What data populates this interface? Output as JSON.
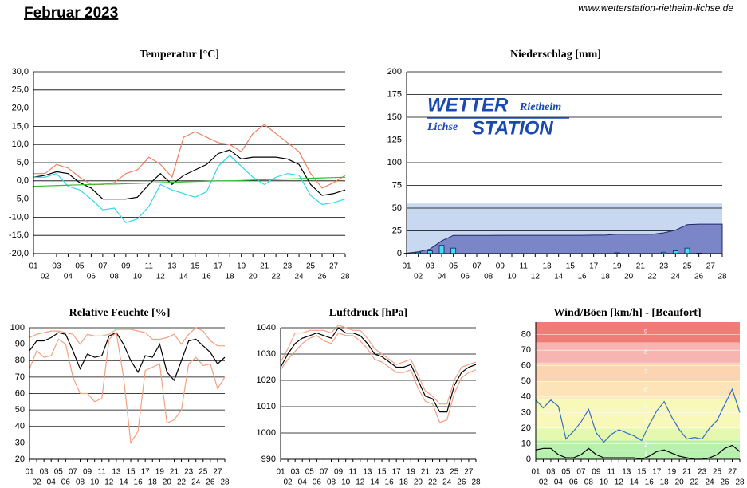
{
  "header": {
    "title": "Februar 2023",
    "url": "www.wetterstation-rietheim-lichse.de"
  },
  "chart_data": [
    {
      "type": "line",
      "title": "Temperatur [°C]",
      "categories": [
        "01",
        "02",
        "03",
        "04",
        "05",
        "06",
        "07",
        "08",
        "09",
        "10",
        "11",
        "12",
        "13",
        "14",
        "15",
        "16",
        "17",
        "18",
        "19",
        "20",
        "21",
        "22",
        "23",
        "24",
        "25",
        "26",
        "27",
        "28"
      ],
      "series": [
        {
          "color": "#f08060",
          "values": [
            2,
            2,
            4.5,
            3.5,
            1,
            -1,
            -1,
            -0.5,
            2,
            3,
            6.5,
            4.5,
            1,
            12,
            13.5,
            12,
            10.5,
            10,
            8,
            13,
            15.5,
            13,
            10.5,
            8,
            2,
            -2,
            -0.5,
            1.5
          ]
        },
        {
          "color": "#000000",
          "values": [
            1,
            1.5,
            2.5,
            2,
            -0.5,
            -2,
            -5,
            -5,
            -5,
            -4.5,
            -1,
            2,
            -1,
            1.5,
            3,
            4.5,
            7.5,
            8.5,
            6,
            6.5,
            6.5,
            6.5,
            6,
            4.5,
            -1,
            -4,
            -3.5,
            -2.5
          ]
        },
        {
          "color": "#30d8f0",
          "values": [
            1,
            1,
            2,
            -1.5,
            -2.5,
            -5,
            -8,
            -7.5,
            -11.5,
            -10.5,
            -7,
            -1,
            -2.5,
            -3.5,
            -4.5,
            -3,
            4,
            7,
            4,
            1,
            -1,
            1,
            2,
            1.5,
            -4,
            -6.5,
            -6,
            -5
          ]
        },
        {
          "color": "#30c030",
          "values": [
            -1.5,
            -1.4,
            -1.3,
            -1.2,
            -1.1,
            -1,
            -0.9,
            -0.9,
            -0.8,
            -0.7,
            -0.6,
            -0.5,
            -0.4,
            -0.3,
            -0.2,
            -0.1,
            0,
            0,
            0.1,
            0.2,
            0.3,
            0.4,
            0.5,
            0.6,
            0.7,
            0.8,
            0.9,
            1
          ]
        }
      ],
      "ylim": [
        -20,
        30
      ],
      "yticks": [
        {
          "value": -20,
          "label": "-20,0"
        },
        {
          "value": -15,
          "label": "-15,0"
        },
        {
          "value": -10,
          "label": "-10,0"
        },
        {
          "value": -5,
          "label": "-5,0"
        },
        {
          "value": 0,
          "label": "0,0"
        },
        {
          "value": 5,
          "label": "5,0"
        },
        {
          "value": 10,
          "label": "10,0"
        },
        {
          "value": 15,
          "label": "15,0"
        },
        {
          "value": 20,
          "label": "20,0"
        },
        {
          "value": 25,
          "label": "25,0"
        },
        {
          "value": 30,
          "label": "30,0"
        }
      ],
      "grid": true
    },
    {
      "type": "bar",
      "title": "Niederschlag [mm]",
      "categories": [
        "01",
        "02",
        "03",
        "04",
        "05",
        "06",
        "07",
        "08",
        "09",
        "10",
        "11",
        "12",
        "13",
        "14",
        "15",
        "16",
        "17",
        "18",
        "19",
        "20",
        "21",
        "22",
        "23",
        "24",
        "25",
        "26",
        "27",
        "28"
      ],
      "values": [
        0.5,
        1.5,
        3,
        9,
        6,
        0,
        0,
        0,
        0.1,
        0,
        0,
        0,
        0,
        0,
        0,
        0,
        0.2,
        0,
        1,
        0,
        0,
        0,
        1.5,
        3,
        6,
        0.5,
        0,
        0
      ],
      "color": "#40e0f0",
      "cumulative_area": true,
      "area_color": "#7a86c8",
      "normal_range": [
        0,
        55
      ],
      "normal_range_color": "#c8d8f0",
      "logo": [
        "WETTER",
        "Rietheim",
        "Lichse",
        "STATION"
      ],
      "ylim": [
        0,
        200
      ],
      "yticks": [
        0,
        25,
        50,
        75,
        100,
        125,
        150,
        175,
        200
      ],
      "grid": true
    },
    {
      "type": "line",
      "title": "Relative Feuchte [%]",
      "categories": [
        "01",
        "02",
        "03",
        "04",
        "05",
        "06",
        "07",
        "08",
        "09",
        "10",
        "11",
        "12",
        "13",
        "14",
        "15",
        "16",
        "17",
        "18",
        "19",
        "20",
        "21",
        "22",
        "23",
        "24",
        "25",
        "26",
        "27",
        "28"
      ],
      "series": [
        {
          "color": "#f4a080",
          "values": [
            94,
            96,
            97,
            98,
            98,
            97,
            96,
            90,
            96,
            95,
            95,
            96,
            99,
            99,
            99,
            98,
            97,
            93,
            93,
            94,
            96,
            90,
            96,
            100,
            98,
            92,
            89,
            89
          ]
        },
        {
          "color": "#000000",
          "values": [
            86,
            92,
            92,
            94,
            97,
            96,
            86,
            75,
            84,
            82,
            83,
            95,
            97,
            90,
            80,
            73,
            83,
            82,
            90,
            73,
            68,
            80,
            92,
            93,
            89,
            85,
            78,
            82
          ]
        },
        {
          "color": "#f4a080",
          "values": [
            75,
            86,
            82,
            83,
            93,
            90,
            70,
            60,
            60,
            55,
            57,
            93,
            97,
            70,
            30,
            37,
            74,
            76,
            78,
            42,
            44,
            50,
            78,
            82,
            77,
            78,
            63,
            70
          ]
        }
      ],
      "ylim": [
        20,
        100
      ],
      "yticks": [
        20,
        30,
        40,
        50,
        60,
        70,
        80,
        90,
        100
      ],
      "grid": true
    },
    {
      "type": "line",
      "title": "Luftdruck [hPa]",
      "categories": [
        "01",
        "02",
        "03",
        "04",
        "05",
        "06",
        "07",
        "08",
        "09",
        "10",
        "11",
        "12",
        "13",
        "14",
        "15",
        "16",
        "17",
        "18",
        "19",
        "20",
        "21",
        "22",
        "23",
        "24",
        "25",
        "26",
        "27",
        "28"
      ],
      "series": [
        {
          "color": "#f4a080",
          "values": [
            1027,
            1032,
            1038,
            1038,
            1039,
            1039,
            1039,
            1038,
            1041,
            1040,
            1039,
            1039,
            1036,
            1032,
            1030,
            1028,
            1026,
            1027,
            1028,
            1022,
            1016,
            1014,
            1011,
            1011,
            1020,
            1025,
            1026,
            1027
          ]
        },
        {
          "color": "#000000",
          "values": [
            1025,
            1030,
            1034,
            1036,
            1037,
            1038,
            1037,
            1036,
            1040,
            1038,
            1038,
            1037,
            1034,
            1030,
            1029,
            1027,
            1025,
            1025,
            1026,
            1020,
            1014,
            1013,
            1008,
            1008,
            1018,
            1023,
            1025,
            1026
          ]
        },
        {
          "color": "#f4a080",
          "values": [
            1024,
            1028,
            1031,
            1034,
            1036,
            1037,
            1035,
            1034,
            1038,
            1037,
            1037,
            1035,
            1032,
            1028,
            1027,
            1025,
            1023,
            1023,
            1024,
            1017,
            1012,
            1011,
            1004,
            1005,
            1015,
            1021,
            1023,
            1024
          ]
        }
      ],
      "ylim": [
        990,
        1040
      ],
      "yticks": [
        990,
        1000,
        1010,
        1020,
        1030,
        1040
      ],
      "grid": true
    },
    {
      "type": "line",
      "title": "Wind/Böen [km/h] - [Beaufort]",
      "categories": [
        "01",
        "02",
        "03",
        "04",
        "05",
        "06",
        "07",
        "08",
        "09",
        "10",
        "11",
        "12",
        "13",
        "14",
        "15",
        "16",
        "17",
        "18",
        "19",
        "20",
        "21",
        "22",
        "23",
        "24",
        "25",
        "26",
        "27",
        "28"
      ],
      "series": [
        {
          "color": "#3070c0",
          "values": [
            38,
            33,
            38,
            34,
            13,
            18,
            24,
            32,
            17,
            11,
            16,
            19,
            17,
            15,
            12,
            22,
            31,
            37,
            27,
            19,
            13,
            14,
            13,
            20,
            25,
            35,
            45,
            30
          ]
        },
        {
          "color": "#000000",
          "values": [
            6,
            7,
            7,
            3,
            1,
            1,
            3,
            7,
            3,
            1,
            1,
            1,
            1,
            1,
            0,
            2,
            5,
            6,
            4,
            2,
            1,
            0,
            0,
            1,
            3,
            7,
            9,
            5
          ]
        }
      ],
      "beaufort": [
        {
          "label": 1,
          "from": 0,
          "to": 6,
          "color": "#b8f0b0"
        },
        {
          "label": 2,
          "from": 6,
          "to": 12,
          "color": "#b8f0b0"
        },
        {
          "label": 3,
          "from": 12,
          "to": 20,
          "color": "#e4f8b0"
        },
        {
          "label": 4,
          "from": 20,
          "to": 29,
          "color": "#f8f8b8"
        },
        {
          "label": 5,
          "from": 29,
          "to": 39,
          "color": "#f8f8b8"
        },
        {
          "label": 6,
          "from": 39,
          "to": 50,
          "color": "#fce4b8"
        },
        {
          "label": 7,
          "from": 50,
          "to": 62,
          "color": "#fcd4b0"
        },
        {
          "label": 8,
          "from": 62,
          "to": 75,
          "color": "#f8b4b0"
        },
        {
          "label": 9,
          "from": 75,
          "to": 88,
          "color": "#f07c78"
        }
      ],
      "ylim": [
        0,
        88
      ],
      "yticks": [
        0,
        10,
        20,
        30,
        40,
        50,
        60,
        70,
        80
      ],
      "grid": true
    }
  ]
}
